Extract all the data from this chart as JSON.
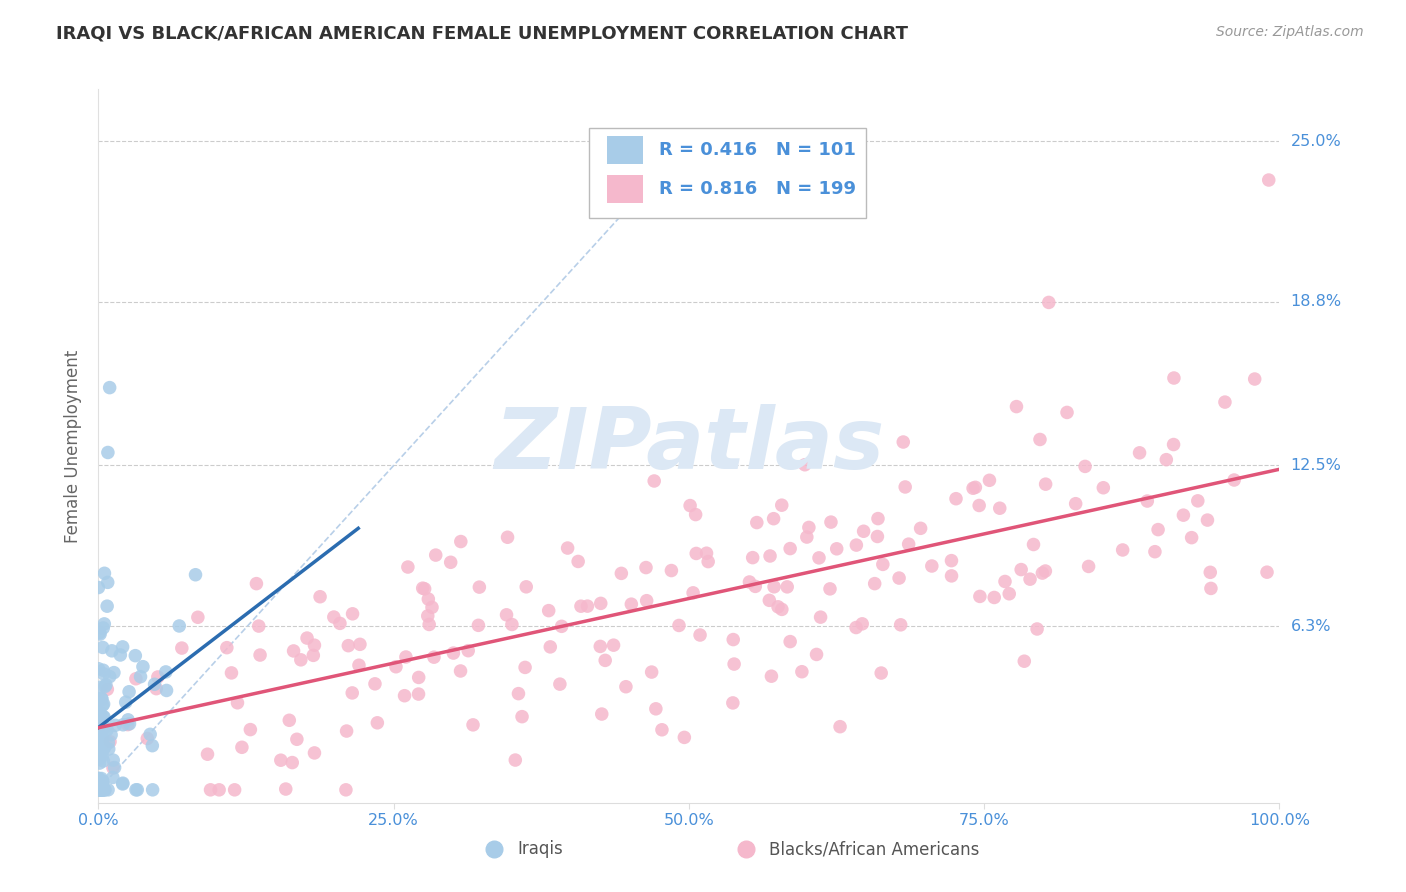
{
  "title": "IRAQI VS BLACK/AFRICAN AMERICAN FEMALE UNEMPLOYMENT CORRELATION CHART",
  "source_text": "Source: ZipAtlas.com",
  "ylabel": "Female Unemployment",
  "xlim": [
    0.0,
    1.0
  ],
  "ylim": [
    -0.005,
    0.27
  ],
  "yticks": [
    0.063,
    0.125,
    0.188,
    0.25
  ],
  "ytick_labels": [
    "6.3%",
    "12.5%",
    "18.8%",
    "25.0%"
  ],
  "xticks": [
    0.0,
    0.25,
    0.5,
    0.75,
    1.0
  ],
  "xtick_labels": [
    "0.0%",
    "25.0%",
    "50.0%",
    "75.0%",
    "100.0%"
  ],
  "legend_R_blue": "R = 0.416",
  "legend_N_blue": "N = 101",
  "legend_R_pink": "R = 0.816",
  "legend_N_pink": "N = 199",
  "legend_label_blue": "Iraqis",
  "legend_label_pink": "Blacks/African Americans",
  "blue_scatter_color": "#a8cce8",
  "pink_scatter_color": "#f5b8cc",
  "blue_line_color": "#2b6cb0",
  "pink_line_color": "#e05578",
  "axis_label_color": "#4a90d9",
  "title_color": "#333333",
  "source_color": "#999999",
  "watermark_color": "#dce8f5",
  "grid_color": "#cccccc",
  "background_color": "#ffffff",
  "seed": 7,
  "blue_n": 101,
  "pink_n": 199
}
